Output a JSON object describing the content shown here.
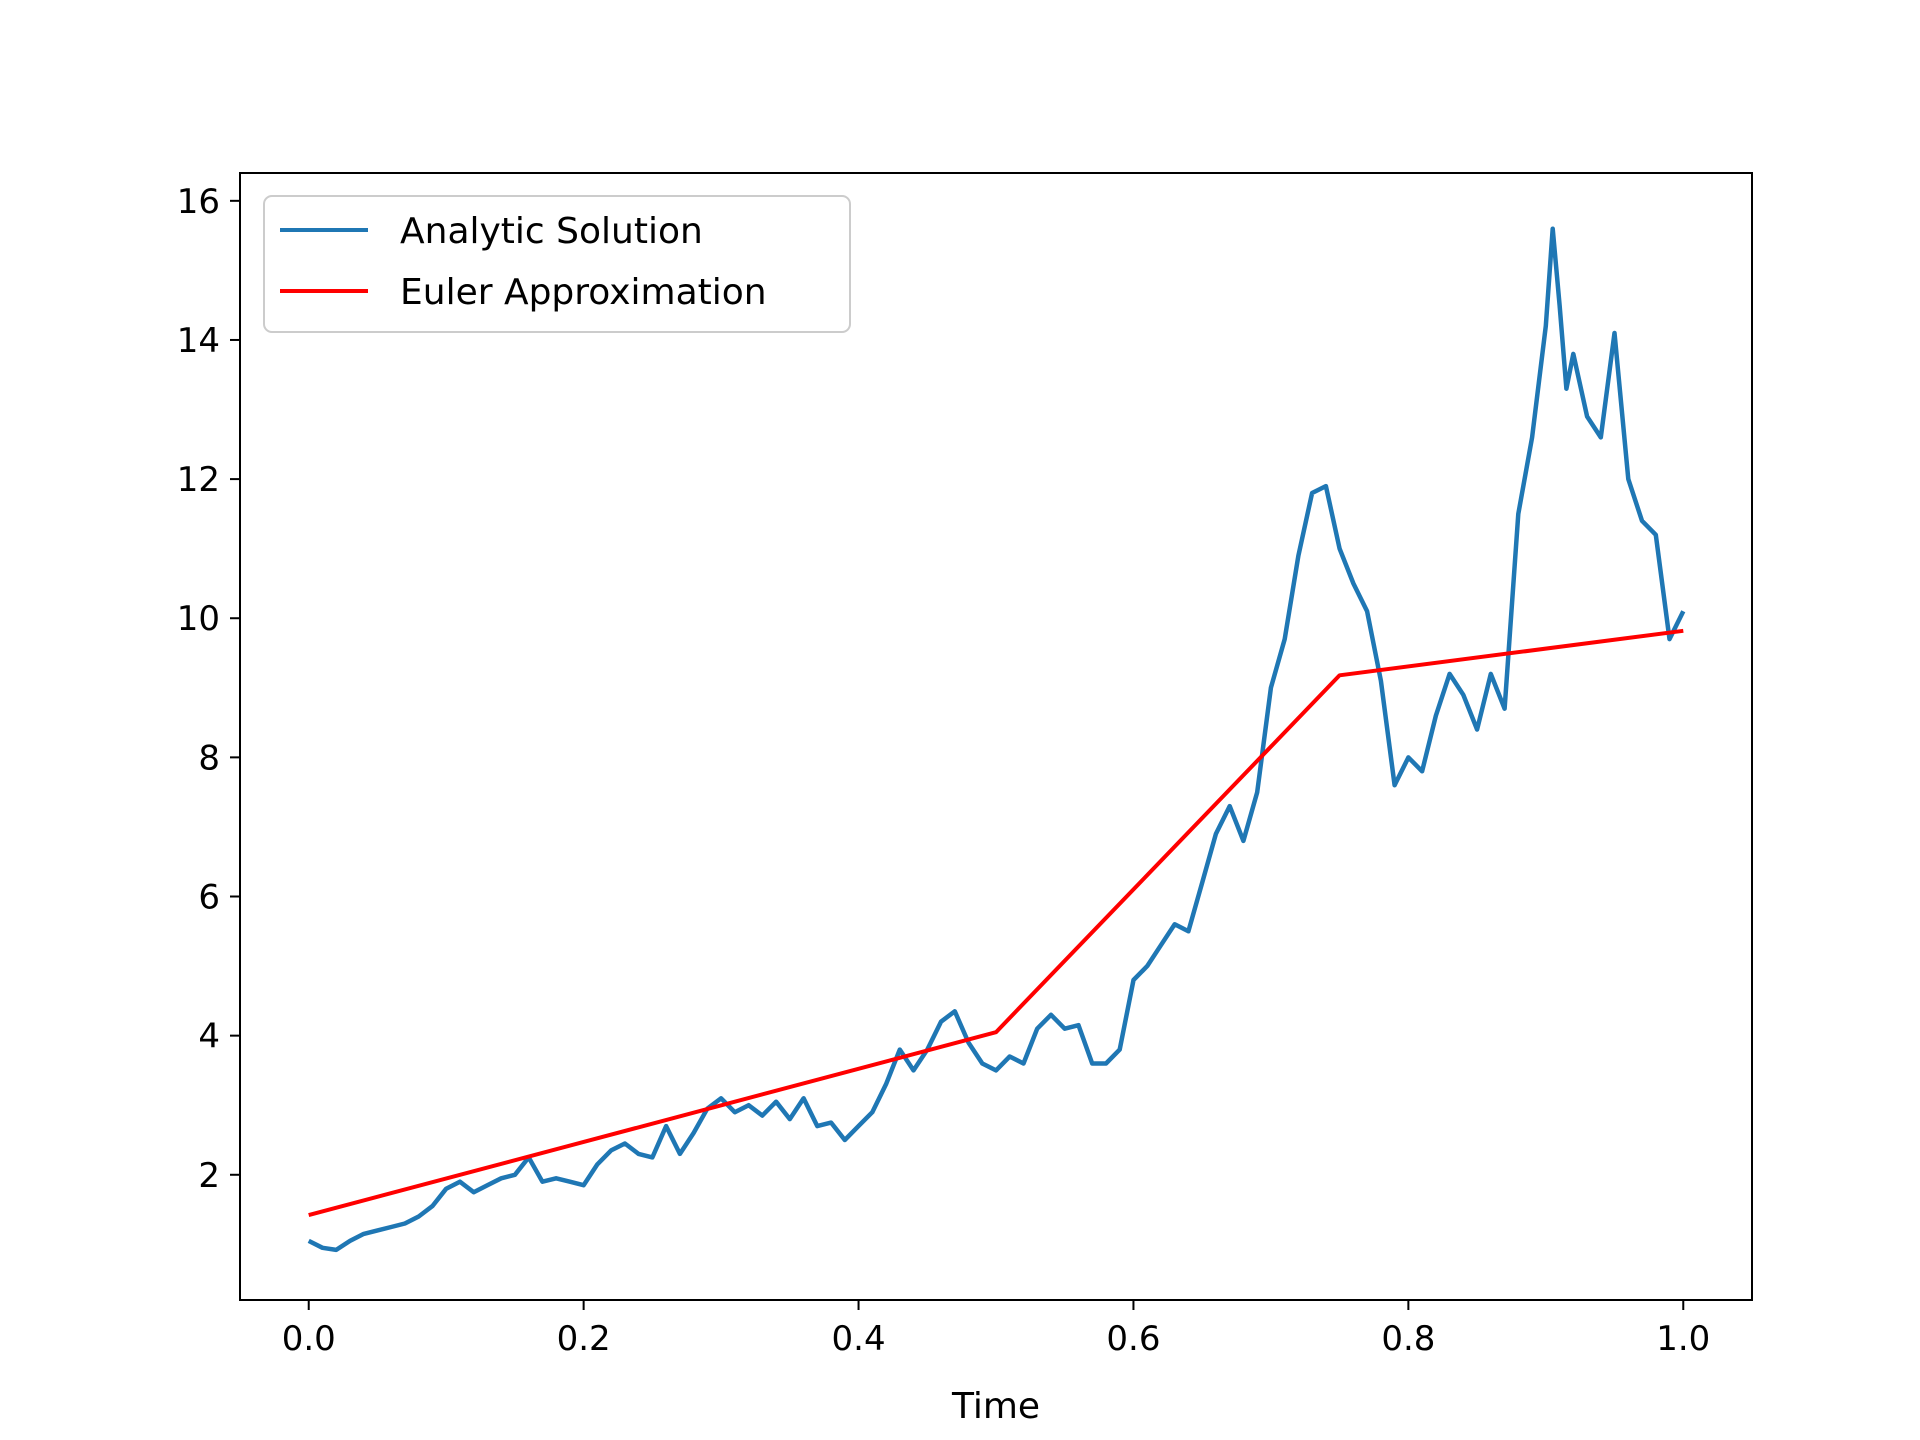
{
  "chart_data": {
    "type": "line",
    "title": "",
    "xlabel": "Time",
    "ylabel": "",
    "xlim": [
      -0.05,
      1.05
    ],
    "ylim": [
      0.2,
      16.4
    ],
    "xticks": [
      0.0,
      0.2,
      0.4,
      0.6,
      0.8,
      1.0
    ],
    "xtick_labels": [
      "0.0",
      "0.2",
      "0.4",
      "0.6",
      "0.8",
      "1.0"
    ],
    "yticks": [
      2,
      4,
      6,
      8,
      10,
      12,
      14,
      16
    ],
    "ytick_labels": [
      "2",
      "4",
      "6",
      "8",
      "10",
      "12",
      "14",
      "16"
    ],
    "grid": false,
    "legend_position": "top-left",
    "series": [
      {
        "name": "Analytic Solution",
        "color": "#1f77b4",
        "x": [
          0.0,
          0.01,
          0.02,
          0.03,
          0.04,
          0.05,
          0.06,
          0.07,
          0.08,
          0.09,
          0.1,
          0.11,
          0.12,
          0.13,
          0.14,
          0.15,
          0.16,
          0.17,
          0.18,
          0.19,
          0.2,
          0.21,
          0.22,
          0.23,
          0.24,
          0.25,
          0.26,
          0.27,
          0.28,
          0.29,
          0.3,
          0.31,
          0.32,
          0.33,
          0.34,
          0.35,
          0.36,
          0.37,
          0.38,
          0.39,
          0.4,
          0.41,
          0.42,
          0.43,
          0.44,
          0.45,
          0.46,
          0.47,
          0.48,
          0.49,
          0.5,
          0.51,
          0.52,
          0.53,
          0.54,
          0.55,
          0.56,
          0.57,
          0.58,
          0.59,
          0.6,
          0.61,
          0.62,
          0.63,
          0.64,
          0.65,
          0.66,
          0.67,
          0.68,
          0.69,
          0.7,
          0.71,
          0.72,
          0.73,
          0.74,
          0.75,
          0.76,
          0.77,
          0.78,
          0.79,
          0.8,
          0.81,
          0.82,
          0.83,
          0.84,
          0.85,
          0.86,
          0.87,
          0.88,
          0.89,
          0.9,
          0.905,
          0.91,
          0.915,
          0.92,
          0.93,
          0.94,
          0.95,
          0.96,
          0.97,
          0.98,
          0.99,
          1.0
        ],
        "y": [
          1.05,
          0.95,
          0.92,
          1.05,
          1.15,
          1.2,
          1.25,
          1.3,
          1.4,
          1.55,
          1.8,
          1.9,
          1.75,
          1.85,
          1.95,
          2.0,
          2.25,
          1.9,
          1.95,
          1.9,
          1.85,
          2.15,
          2.35,
          2.45,
          2.3,
          2.25,
          2.7,
          2.3,
          2.6,
          2.95,
          3.1,
          2.9,
          3.0,
          2.85,
          3.05,
          2.8,
          3.1,
          2.7,
          2.75,
          2.5,
          2.7,
          2.9,
          3.3,
          3.8,
          3.5,
          3.8,
          4.2,
          4.35,
          3.9,
          3.6,
          3.5,
          3.7,
          3.6,
          4.1,
          4.3,
          4.1,
          4.15,
          3.6,
          3.6,
          3.8,
          4.8,
          5.0,
          5.3,
          5.6,
          5.5,
          6.2,
          6.9,
          7.3,
          6.8,
          7.5,
          9.0,
          9.7,
          10.9,
          11.8,
          11.9,
          11.0,
          10.5,
          10.1,
          9.1,
          7.6,
          8.0,
          7.8,
          8.6,
          9.2,
          8.9,
          8.4,
          9.2,
          8.7,
          11.5,
          12.6,
          14.2,
          15.6,
          14.5,
          13.3,
          13.8,
          12.9,
          12.6,
          14.1,
          12.0,
          11.4,
          11.2,
          9.7,
          10.1
        ]
      },
      {
        "name": "Euler Approximation",
        "color": "#ff0000",
        "x": [
          0.0,
          0.5,
          0.75,
          1.0
        ],
        "y": [
          1.42,
          4.05,
          9.18,
          9.82
        ]
      }
    ]
  }
}
